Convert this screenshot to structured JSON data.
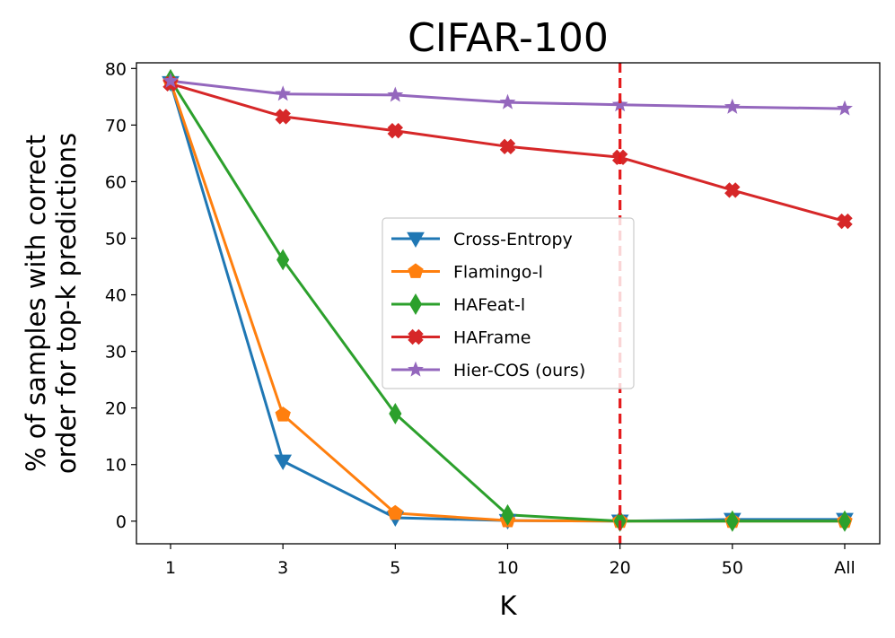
{
  "chart_data": {
    "type": "line",
    "title": "CIFAR-100",
    "xlabel": "K",
    "ylabel": [
      "% of samples with correct",
      "order for top-k predictions"
    ],
    "categories": [
      "1",
      "3",
      "5",
      "10",
      "20",
      "50",
      "All"
    ],
    "ylim": [
      -4,
      81
    ],
    "yticks": [
      0,
      10,
      20,
      30,
      40,
      50,
      60,
      70,
      80
    ],
    "grid": false,
    "legend_position": "center-right",
    "reference_line": {
      "category": "20",
      "color": "#e41a1c",
      "style": "dashed"
    },
    "series": [
      {
        "name": "Cross-Entropy",
        "color": "#1f77b4",
        "marker": "triangle-down",
        "values": [
          77.5,
          10.6,
          0.6,
          0.1,
          0.0,
          0.3,
          0.3
        ]
      },
      {
        "name": "Flamingo-l",
        "color": "#ff7f0e",
        "marker": "pentagon",
        "values": [
          77.6,
          18.8,
          1.4,
          0.1,
          0.0,
          0.0,
          0.0
        ]
      },
      {
        "name": "HAFeat-l",
        "color": "#2ca02c",
        "marker": "diamond",
        "values": [
          78.0,
          46.2,
          19.0,
          1.1,
          0.0,
          0.0,
          0.0
        ]
      },
      {
        "name": "HAFrame",
        "color": "#d62728",
        "marker": "x-filled",
        "values": [
          77.3,
          71.5,
          69.0,
          66.2,
          64.3,
          58.5,
          53.0
        ]
      },
      {
        "name": "Hier-COS (ours)",
        "color": "#9467bd",
        "marker": "star",
        "values": [
          77.8,
          75.5,
          75.3,
          74.0,
          73.6,
          73.2,
          72.9
        ]
      }
    ]
  }
}
